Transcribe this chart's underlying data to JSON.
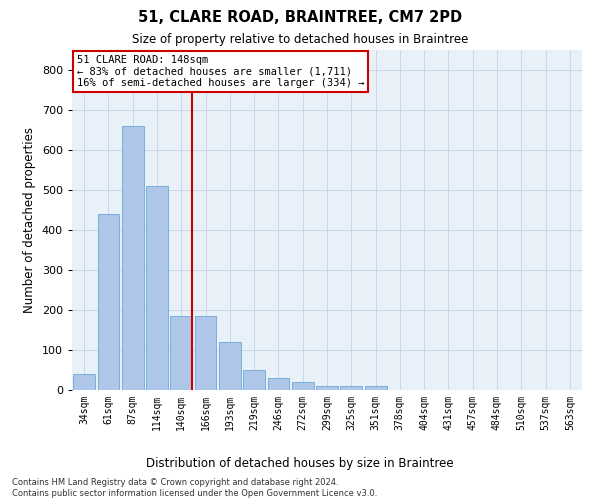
{
  "title": "51, CLARE ROAD, BRAINTREE, CM7 2PD",
  "subtitle": "Size of property relative to detached houses in Braintree",
  "xlabel": "Distribution of detached houses by size in Braintree",
  "ylabel": "Number of detached properties",
  "categories": [
    "34sqm",
    "61sqm",
    "87sqm",
    "114sqm",
    "140sqm",
    "166sqm",
    "193sqm",
    "219sqm",
    "246sqm",
    "272sqm",
    "299sqm",
    "325sqm",
    "351sqm",
    "378sqm",
    "404sqm",
    "431sqm",
    "457sqm",
    "484sqm",
    "510sqm",
    "537sqm",
    "563sqm"
  ],
  "values": [
    40,
    440,
    660,
    510,
    185,
    185,
    120,
    50,
    30,
    20,
    10,
    10,
    10,
    0,
    0,
    0,
    0,
    0,
    0,
    0,
    0
  ],
  "bar_color": "#aec6e8",
  "bar_edgecolor": "#5a9fd4",
  "grid_color": "#c8d8e8",
  "background_color": "#e8f0f8",
  "vline_color": "#cc0000",
  "annotation_text": "51 CLARE ROAD: 148sqm\n← 83% of detached houses are smaller (1,711)\n16% of semi-detached houses are larger (334) →",
  "annotation_box_facecolor": "#ffffff",
  "annotation_box_edgecolor": "#cc0000",
  "ylim": [
    0,
    850
  ],
  "yticks": [
    0,
    100,
    200,
    300,
    400,
    500,
    600,
    700,
    800
  ],
  "footnote": "Contains HM Land Registry data © Crown copyright and database right 2024.\nContains public sector information licensed under the Open Government Licence v3.0."
}
